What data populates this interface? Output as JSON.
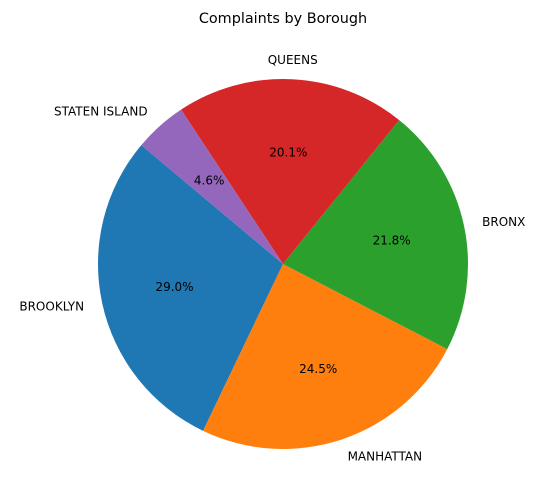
{
  "chart_data": {
    "type": "pie",
    "title": "Complaints by Borough",
    "slices": [
      {
        "label": "BROOKLYN",
        "value": 29.0,
        "pct_label": "29.0%",
        "color": "#1f77b4"
      },
      {
        "label": "MANHATTAN",
        "value": 24.5,
        "pct_label": "24.5%",
        "color": "#ff7f0e"
      },
      {
        "label": "BRONX",
        "value": 21.8,
        "pct_label": "21.8%",
        "color": "#2ca02c"
      },
      {
        "label": "QUEENS",
        "value": 20.1,
        "pct_label": "20.1%",
        "color": "#d62728"
      },
      {
        "label": "STATEN ISLAND",
        "value": 4.6,
        "pct_label": "4.6%",
        "color": "#9467bd"
      }
    ],
    "start_angle_deg": 140,
    "direction": "counterclockwise"
  }
}
